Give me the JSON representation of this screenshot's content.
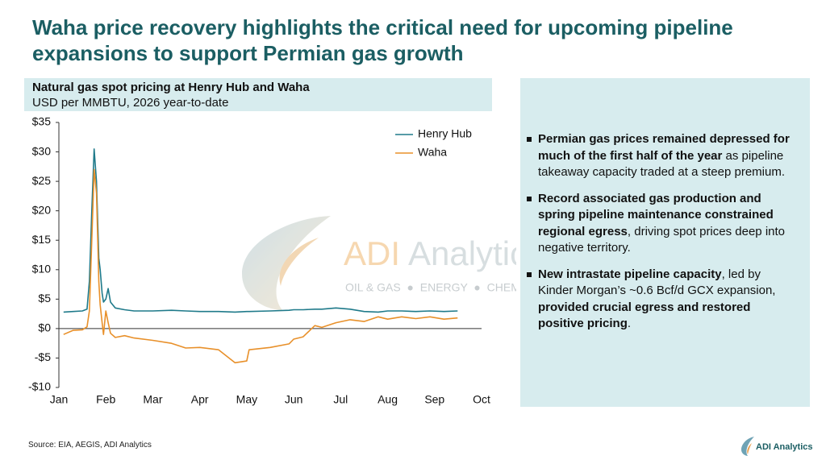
{
  "header": {
    "title": "Waha price recovery highlights the critical need for upcoming pipeline expansions to support Permian gas growth"
  },
  "chart_data": {
    "type": "line",
    "title": "Natural gas spot pricing at Henry Hub and Waha",
    "subtitle": "USD per MMBTU, 2026 year-to-date",
    "x": [
      0.1,
      0.3,
      0.5,
      0.6,
      0.65,
      0.7,
      0.75,
      0.8,
      0.85,
      0.88,
      0.92,
      0.95,
      1.0,
      1.05,
      1.1,
      1.2,
      1.4,
      1.6,
      2.0,
      2.4,
      2.7,
      3.0,
      3.4,
      3.75,
      4.0,
      4.05,
      4.5,
      4.9,
      5.0,
      5.2,
      5.45,
      5.6,
      5.9,
      6.2,
      6.5,
      6.8,
      7.0,
      7.3,
      7.6,
      7.9,
      8.2,
      8.49
    ],
    "series": [
      {
        "name": "Henry Hub",
        "color": "#1f7a8a",
        "values": [
          2.8,
          2.9,
          3.0,
          3.3,
          8,
          20,
          30.5,
          25,
          12,
          10,
          6,
          4.5,
          5,
          6.8,
          4.5,
          3.5,
          3.2,
          3.0,
          3.0,
          3.1,
          3.0,
          2.9,
          2.9,
          2.8,
          2.9,
          2.9,
          3.0,
          3.1,
          3.2,
          3.2,
          3.3,
          3.3,
          3.5,
          3.3,
          2.9,
          2.8,
          3.0,
          3.0,
          2.9,
          3.0,
          2.9,
          3.0
        ]
      },
      {
        "name": "Waha",
        "color": "#e8902a",
        "values": [
          -1,
          -0.3,
          -0.2,
          0.3,
          3,
          15,
          27,
          23,
          8,
          4,
          1,
          -1,
          3,
          1,
          -0.8,
          -1.5,
          -1.2,
          -1.6,
          -2,
          -2.5,
          -3.3,
          -3.2,
          -3.6,
          -5.8,
          -5.5,
          -3.6,
          -3.2,
          -2.6,
          -1.8,
          -1.4,
          0.5,
          0.2,
          1,
          1.5,
          1.2,
          2,
          1.6,
          2,
          1.7,
          2,
          1.6,
          1.8
        ]
      }
    ],
    "xlim": [
      0,
      9
    ],
    "xticks": [
      {
        "value": 0,
        "label": "Jan"
      },
      {
        "value": 1,
        "label": "Feb"
      },
      {
        "value": 2,
        "label": "Mar"
      },
      {
        "value": 3,
        "label": "Apr"
      },
      {
        "value": 4,
        "label": "May"
      },
      {
        "value": 5,
        "label": "Jun"
      },
      {
        "value": 6,
        "label": "Jul"
      },
      {
        "value": 7,
        "label": "Aug"
      },
      {
        "value": 8,
        "label": "Sep"
      },
      {
        "value": 9,
        "label": "Oct"
      }
    ],
    "ylim": [
      -10,
      35
    ],
    "yticks": [
      {
        "value": 35,
        "label": "$35"
      },
      {
        "value": 30,
        "label": "$30"
      },
      {
        "value": 25,
        "label": "$25"
      },
      {
        "value": 20,
        "label": "$20"
      },
      {
        "value": 15,
        "label": "$15"
      },
      {
        "value": 10,
        "label": "$10"
      },
      {
        "value": 5,
        "label": "$5"
      },
      {
        "value": 0,
        "label": "$0"
      },
      {
        "value": -5,
        "label": "-$5"
      },
      {
        "value": -10,
        "label": "-$10"
      }
    ],
    "legend": "top-right"
  },
  "watermark": {
    "brand_a": "ADI",
    "brand_b": "Analytics",
    "tagline": "OIL & GAS  ●  ENERGY  ●  CHEMICALS"
  },
  "bullets": [
    [
      {
        "text": "Permian gas prices remained depressed for much of the first half of the year",
        "bold": true
      },
      {
        "text": " as pipeline takeaway capacity traded at a steep premium.",
        "bold": false
      }
    ],
    [
      {
        "text": "Record associated gas production and spring pipeline maintenance constrained regional egress",
        "bold": true
      },
      {
        "text": ", driving spot prices deep into negative territory.",
        "bold": false
      }
    ],
    [
      {
        "text": "New intrastate pipeline capacity",
        "bold": true
      },
      {
        "text": ", led by Kinder Morgan’s ~0.6 Bcf/d GCX expansion, ",
        "bold": false
      },
      {
        "text": "provided crucial egress and restored positive pricing",
        "bold": true
      },
      {
        "text": ".",
        "bold": false
      }
    ]
  ],
  "source": "Source: EIA, AEGIS, ADI Analytics",
  "logo": "ADI Analytics"
}
